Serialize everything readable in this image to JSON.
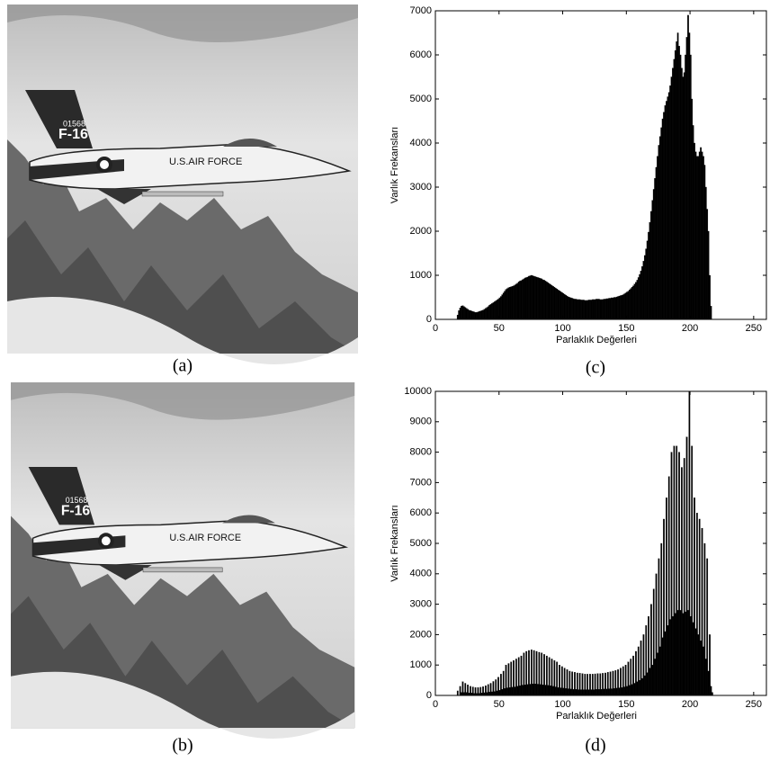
{
  "captions": [
    "(a)",
    "(b)",
    "(c)",
    "(d)"
  ],
  "image_text": {
    "tail": "F-16",
    "serial": "01568",
    "fuselage": "U.S.AIR FORCE"
  },
  "chart_data": [
    {
      "type": "histogram",
      "xlabel": "Parlaklık Değerleri",
      "ylabel": "Varlık Frekansları",
      "color": "#000000",
      "xlim": [
        0,
        260
      ],
      "xticks": [
        0,
        50,
        100,
        150,
        200,
        250
      ],
      "ylim": [
        0,
        7000
      ],
      "yticks": [
        0,
        1000,
        2000,
        3000,
        4000,
        5000,
        6000,
        7000
      ],
      "bins": [
        16,
        17,
        18,
        19,
        20,
        21,
        22,
        23,
        24,
        25,
        26,
        27,
        28,
        29,
        30,
        31,
        32,
        33,
        34,
        35,
        36,
        37,
        38,
        39,
        40,
        41,
        42,
        43,
        44,
        45,
        46,
        47,
        48,
        49,
        50,
        51,
        52,
        53,
        54,
        55,
        56,
        57,
        58,
        59,
        60,
        61,
        62,
        63,
        64,
        65,
        66,
        67,
        68,
        69,
        70,
        71,
        72,
        73,
        74,
        75,
        76,
        77,
        78,
        79,
        80,
        81,
        82,
        83,
        84,
        85,
        86,
        87,
        88,
        89,
        90,
        91,
        92,
        93,
        94,
        95,
        96,
        97,
        98,
        99,
        100,
        101,
        102,
        103,
        104,
        105,
        106,
        107,
        108,
        109,
        110,
        111,
        112,
        113,
        114,
        115,
        116,
        117,
        118,
        119,
        120,
        121,
        122,
        123,
        124,
        125,
        126,
        127,
        128,
        129,
        130,
        131,
        132,
        133,
        134,
        135,
        136,
        137,
        138,
        139,
        140,
        141,
        142,
        143,
        144,
        145,
        146,
        147,
        148,
        149,
        150,
        151,
        152,
        153,
        154,
        155,
        156,
        157,
        158,
        159,
        160,
        161,
        162,
        163,
        164,
        165,
        166,
        167,
        168,
        169,
        170,
        171,
        172,
        173,
        174,
        175,
        176,
        177,
        178,
        179,
        180,
        181,
        182,
        183,
        184,
        185,
        186,
        187,
        188,
        189,
        190,
        191,
        192,
        193,
        194,
        195,
        196,
        197,
        198,
        199,
        200,
        201,
        202,
        203,
        204,
        205,
        206,
        207,
        208,
        209,
        210,
        211,
        212,
        213,
        214,
        215,
        216,
        217,
        218
      ],
      "values": [
        0,
        100,
        200,
        260,
        300,
        310,
        290,
        270,
        250,
        230,
        210,
        200,
        190,
        180,
        170,
        160,
        160,
        170,
        180,
        190,
        200,
        210,
        230,
        250,
        270,
        290,
        320,
        340,
        360,
        380,
        400,
        420,
        440,
        460,
        490,
        520,
        560,
        600,
        640,
        680,
        700,
        720,
        730,
        740,
        750,
        760,
        780,
        800,
        820,
        850,
        870,
        880,
        900,
        920,
        940,
        950,
        960,
        980,
        990,
        1000,
        990,
        980,
        970,
        960,
        950,
        940,
        930,
        920,
        900,
        890,
        870,
        850,
        830,
        810,
        790,
        770,
        750,
        730,
        710,
        690,
        670,
        650,
        630,
        610,
        590,
        570,
        550,
        530,
        510,
        500,
        490,
        480,
        470,
        460,
        460,
        450,
        450,
        450,
        440,
        440,
        440,
        430,
        430,
        430,
        440,
        440,
        440,
        450,
        450,
        450,
        460,
        460,
        460,
        450,
        450,
        450,
        460,
        460,
        470,
        470,
        480,
        480,
        490,
        490,
        500,
        500,
        510,
        520,
        530,
        540,
        550,
        560,
        580,
        600,
        620,
        640,
        670,
        700,
        730,
        760,
        800,
        840,
        890,
        950,
        1020,
        1100,
        1200,
        1320,
        1450,
        1600,
        1780,
        1980,
        2200,
        2450,
        2700,
        2950,
        3200,
        3450,
        3700,
        3950,
        4150,
        4350,
        4550,
        4700,
        4850,
        4950,
        5050,
        5150,
        5300,
        5500,
        5700,
        5900,
        6100,
        6300,
        6500,
        6200,
        6000,
        5700,
        5500,
        5600,
        6000,
        6400,
        6900,
        6500,
        6000,
        5000,
        4400,
        4000,
        3800,
        3700,
        3700,
        3800,
        3900,
        3800,
        3700,
        3500,
        3000,
        2500,
        2000,
        1000,
        300,
        0
      ]
    },
    {
      "type": "histogram",
      "xlabel": "Parlaklık Değerleri",
      "ylabel": "Varlık Frekansları",
      "color": "#000000",
      "xlim": [
        0,
        260
      ],
      "xticks": [
        0,
        50,
        100,
        150,
        200,
        250
      ],
      "ylim": [
        0,
        10000
      ],
      "yticks": [
        0,
        1000,
        2000,
        3000,
        4000,
        5000,
        6000,
        7000,
        8000,
        9000,
        10000
      ],
      "bins": [
        14,
        15,
        16,
        17,
        18,
        19,
        20,
        21,
        22,
        23,
        24,
        25,
        26,
        27,
        28,
        29,
        30,
        31,
        32,
        33,
        34,
        35,
        36,
        37,
        38,
        39,
        40,
        41,
        42,
        43,
        44,
        45,
        46,
        47,
        48,
        49,
        50,
        51,
        52,
        53,
        54,
        55,
        56,
        57,
        58,
        59,
        60,
        61,
        62,
        63,
        64,
        65,
        66,
        67,
        68,
        69,
        70,
        71,
        72,
        73,
        74,
        75,
        76,
        77,
        78,
        79,
        80,
        81,
        82,
        83,
        84,
        85,
        86,
        87,
        88,
        89,
        90,
        91,
        92,
        93,
        94,
        95,
        96,
        97,
        98,
        99,
        100,
        101,
        102,
        103,
        104,
        105,
        106,
        107,
        108,
        109,
        110,
        111,
        112,
        113,
        114,
        115,
        116,
        117,
        118,
        119,
        120,
        121,
        122,
        123,
        124,
        125,
        126,
        127,
        128,
        129,
        130,
        131,
        132,
        133,
        134,
        135,
        136,
        137,
        138,
        139,
        140,
        141,
        142,
        143,
        144,
        145,
        146,
        147,
        148,
        149,
        150,
        151,
        152,
        153,
        154,
        155,
        156,
        157,
        158,
        159,
        160,
        161,
        162,
        163,
        164,
        165,
        166,
        167,
        168,
        169,
        170,
        171,
        172,
        173,
        174,
        175,
        176,
        177,
        178,
        179,
        180,
        181,
        182,
        183,
        184,
        185,
        186,
        187,
        188,
        189,
        190,
        191,
        192,
        193,
        194,
        195,
        196,
        197,
        198,
        199,
        200,
        201,
        202,
        203,
        204,
        205,
        206,
        207,
        208,
        209,
        210,
        211,
        212,
        213,
        214,
        215,
        216,
        217,
        218,
        219,
        220
      ],
      "values": [
        0,
        0,
        0,
        150,
        0,
        300,
        100,
        450,
        100,
        400,
        100,
        350,
        80,
        300,
        80,
        280,
        70,
        260,
        70,
        260,
        70,
        270,
        80,
        290,
        90,
        320,
        100,
        360,
        110,
        400,
        120,
        460,
        130,
        520,
        150,
        600,
        170,
        700,
        200,
        800,
        230,
        1000,
        250,
        1050,
        260,
        1100,
        270,
        1150,
        280,
        1200,
        300,
        1250,
        320,
        1300,
        340,
        1400,
        350,
        1450,
        360,
        1480,
        370,
        1500,
        380,
        1480,
        380,
        1450,
        370,
        1420,
        360,
        1400,
        350,
        1350,
        340,
        1300,
        330,
        1250,
        320,
        1200,
        300,
        1150,
        280,
        1100,
        260,
        1000,
        250,
        950,
        240,
        900,
        230,
        850,
        220,
        800,
        210,
        780,
        200,
        760,
        200,
        740,
        190,
        730,
        190,
        720,
        190,
        700,
        190,
        700,
        190,
        700,
        190,
        700,
        190,
        710,
        200,
        720,
        200,
        720,
        200,
        730,
        210,
        740,
        210,
        760,
        220,
        780,
        220,
        800,
        230,
        820,
        240,
        850,
        250,
        900,
        260,
        950,
        280,
        1000,
        300,
        1100,
        330,
        1200,
        360,
        1300,
        400,
        1450,
        450,
        1600,
        500,
        1800,
        560,
        2000,
        650,
        2300,
        750,
        2600,
        900,
        3000,
        1000,
        3500,
        1200,
        4000,
        1400,
        4500,
        1600,
        5000,
        1900,
        5800,
        2100,
        6500,
        2300,
        7200,
        2500,
        8000,
        2600,
        8200,
        2700,
        8200,
        2800,
        8000,
        2800,
        7500,
        2700,
        7800,
        2750,
        8500,
        2800,
        10000,
        2600,
        8200,
        2400,
        6500,
        2200,
        6000,
        2000,
        5800,
        1800,
        5500,
        1600,
        5000,
        1200,
        4500,
        800,
        2000,
        300,
        100,
        0,
        0
      ]
    }
  ]
}
